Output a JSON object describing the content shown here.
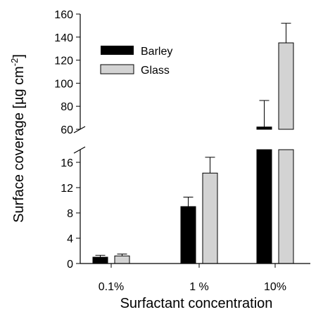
{
  "chart_data": {
    "type": "bar",
    "title": "",
    "xlabel": "Surfactant concentration",
    "ylabel_main": "Surface coverage [µg cm",
    "ylabel_sup": "-2",
    "ylabel_end": "]",
    "categories": [
      "0.1%",
      "1 %",
      "10%"
    ],
    "series": [
      {
        "name": "Barley",
        "color": "#000000",
        "values": [
          1.0,
          9.0,
          62
        ],
        "errors": [
          0.3,
          1.5,
          23
        ]
      },
      {
        "name": "Glass",
        "color": "#d3d3d3",
        "values": [
          1.2,
          14.3,
          135
        ],
        "errors": [
          0.3,
          2.5,
          17
        ]
      }
    ],
    "y_axis_broken": true,
    "y_lower_range": [
      0,
      18
    ],
    "y_lower_ticks": [
      0,
      4,
      8,
      12,
      16
    ],
    "y_upper_range": [
      60,
      160
    ],
    "y_upper_ticks": [
      60,
      80,
      100,
      120,
      140,
      160
    ],
    "legend_position": "top-left",
    "grid": false
  }
}
